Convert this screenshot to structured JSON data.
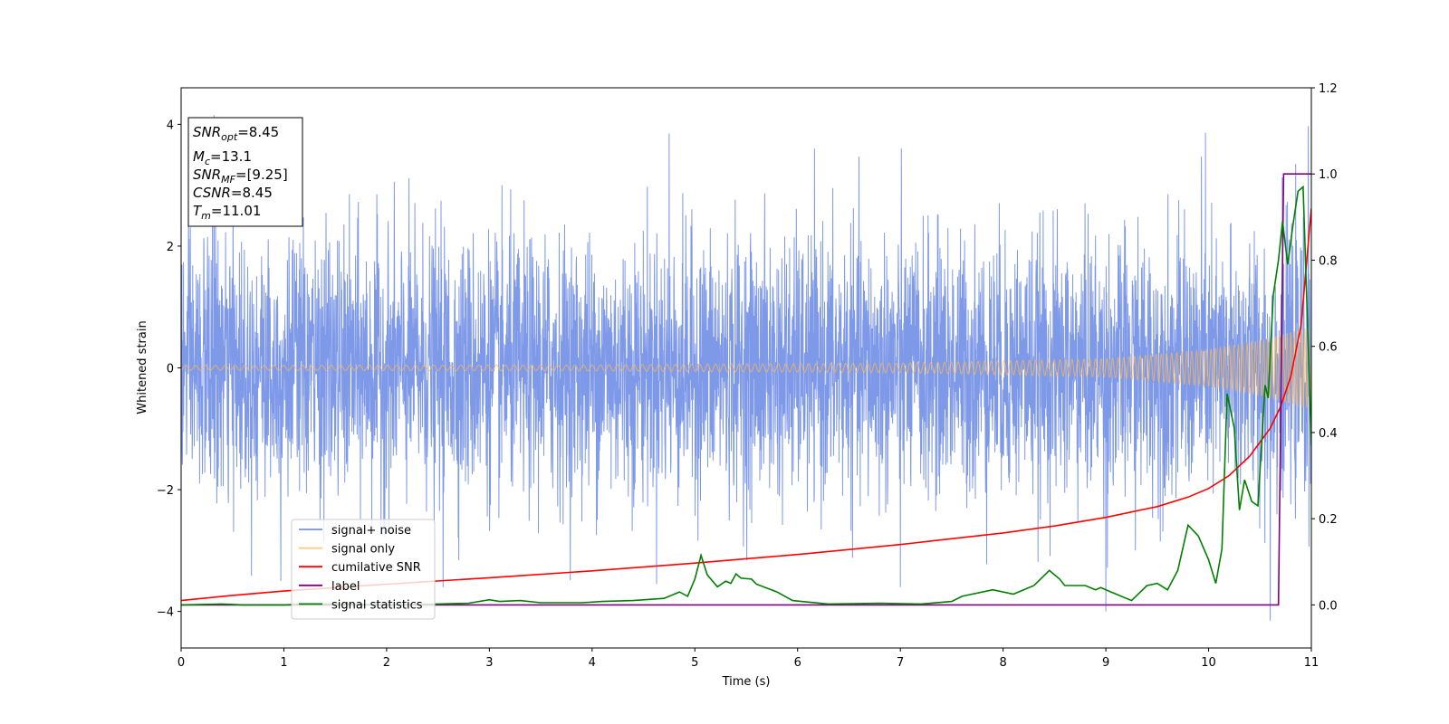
{
  "chart_data": {
    "type": "line",
    "xlabel": "Time (s)",
    "ylabel": "Whitened strain",
    "xlim": [
      0,
      11
    ],
    "ylim": [
      -4.6,
      4.6
    ],
    "y2lim": [
      -0.1,
      1.2
    ],
    "x_ticks": [
      "0",
      "1",
      "2",
      "3",
      "4",
      "5",
      "6",
      "7",
      "8",
      "9",
      "10",
      "11"
    ],
    "y_ticks": [
      "-4",
      "-2",
      "0",
      "2",
      "4"
    ],
    "y2_ticks": [
      "0.0",
      "0.2",
      "0.4",
      "0.6",
      "0.8",
      "1.0",
      "1.2"
    ],
    "legend_position": "lower-left",
    "info_box": {
      "snr_opt": {
        "sym": "SNR",
        "sub": "opt",
        "value": "=8.45"
      },
      "mc": {
        "sym": "M",
        "sub": "c",
        "value": "=13.1"
      },
      "snr_mf": {
        "sym": "SNR",
        "sub": "MF",
        "value": "=[9.25]"
      },
      "csnr": {
        "sym": "CSNR",
        "value": "=8.45"
      },
      "tm": {
        "sym": "T",
        "sub": "m",
        "value": "=11.01"
      }
    },
    "series": [
      {
        "name": "signal+ noise",
        "color": "#7893e8",
        "axis": "left",
        "description_kind": "noise_envelope",
        "t_start": 0,
        "t_end": 11,
        "sigma": 1.0,
        "peak_extremes": [
          {
            "x": 0.32,
            "y": 4.15
          },
          {
            "x": 4.75,
            "y": 3.85
          },
          {
            "x": 9.97,
            "y": 3.86
          },
          {
            "x": 10.97,
            "y": 3.97
          },
          {
            "x": 10.6,
            "y": -4.15
          },
          {
            "x": 9.0,
            "y": -4.0
          },
          {
            "x": 0.97,
            "y": -3.5
          },
          {
            "x": 2.55,
            "y": -3.6
          },
          {
            "x": 7.0,
            "y": -3.6
          }
        ]
      },
      {
        "name": "signal only",
        "color": "#ffb84d",
        "axis": "left",
        "description_kind": "chirp",
        "t_start": 0,
        "t_end": 11,
        "amplitude_points": [
          [
            0,
            0.04
          ],
          [
            4,
            0.05
          ],
          [
            7,
            0.08
          ],
          [
            9,
            0.15
          ],
          [
            10,
            0.3
          ],
          [
            10.5,
            0.45
          ],
          [
            11,
            0.68
          ]
        ]
      },
      {
        "name": "cumilative SNR",
        "color": "#ff0000",
        "axis": "right",
        "points": [
          [
            0,
            0.01
          ],
          [
            0.5,
            0.022
          ],
          [
            1,
            0.032
          ],
          [
            2,
            0.048
          ],
          [
            3,
            0.063
          ],
          [
            4,
            0.079
          ],
          [
            5,
            0.097
          ],
          [
            6,
            0.117
          ],
          [
            7,
            0.14
          ],
          [
            8,
            0.167
          ],
          [
            8.5,
            0.183
          ],
          [
            9,
            0.203
          ],
          [
            9.5,
            0.228
          ],
          [
            9.8,
            0.25
          ],
          [
            10,
            0.27
          ],
          [
            10.2,
            0.3
          ],
          [
            10.4,
            0.345
          ],
          [
            10.6,
            0.41
          ],
          [
            10.7,
            0.46
          ],
          [
            10.8,
            0.53
          ],
          [
            10.9,
            0.65
          ],
          [
            11,
            0.92
          ]
        ]
      },
      {
        "name": "label",
        "color": "#800080",
        "axis": "right",
        "points": [
          [
            0,
            0.0
          ],
          [
            10.68,
            0.0
          ],
          [
            10.73,
            1.0
          ],
          [
            11,
            1.0
          ]
        ]
      },
      {
        "name": "signal statistics",
        "color": "#008000",
        "axis": "right",
        "points": [
          [
            0,
            0.0
          ],
          [
            0.4,
            0.002
          ],
          [
            0.6,
            0.0
          ],
          [
            1.0,
            0.0
          ],
          [
            1.2,
            0.002
          ],
          [
            1.6,
            0.002
          ],
          [
            2.0,
            0.0
          ],
          [
            2.5,
            0.002
          ],
          [
            2.8,
            0.004
          ],
          [
            3.0,
            0.012
          ],
          [
            3.1,
            0.008
          ],
          [
            3.3,
            0.01
          ],
          [
            3.5,
            0.005
          ],
          [
            3.9,
            0.005
          ],
          [
            4.1,
            0.008
          ],
          [
            4.4,
            0.01
          ],
          [
            4.7,
            0.015
          ],
          [
            4.85,
            0.03
          ],
          [
            4.93,
            0.02
          ],
          [
            5.0,
            0.06
          ],
          [
            5.06,
            0.115
          ],
          [
            5.12,
            0.07
          ],
          [
            5.22,
            0.042
          ],
          [
            5.3,
            0.055
          ],
          [
            5.35,
            0.05
          ],
          [
            5.4,
            0.072
          ],
          [
            5.45,
            0.062
          ],
          [
            5.55,
            0.06
          ],
          [
            5.6,
            0.048
          ],
          [
            5.8,
            0.03
          ],
          [
            5.95,
            0.01
          ],
          [
            6.3,
            0.002
          ],
          [
            6.8,
            0.004
          ],
          [
            7.2,
            0.002
          ],
          [
            7.5,
            0.008
          ],
          [
            7.6,
            0.02
          ],
          [
            7.9,
            0.035
          ],
          [
            8.1,
            0.025
          ],
          [
            8.3,
            0.045
          ],
          [
            8.45,
            0.08
          ],
          [
            8.55,
            0.06
          ],
          [
            8.6,
            0.045
          ],
          [
            8.8,
            0.045
          ],
          [
            8.9,
            0.035
          ],
          [
            8.95,
            0.04
          ],
          [
            9.05,
            0.03
          ],
          [
            9.25,
            0.01
          ],
          [
            9.4,
            0.045
          ],
          [
            9.5,
            0.05
          ],
          [
            9.6,
            0.035
          ],
          [
            9.7,
            0.08
          ],
          [
            9.8,
            0.185
          ],
          [
            9.9,
            0.16
          ],
          [
            10.0,
            0.105
          ],
          [
            10.07,
            0.05
          ],
          [
            10.13,
            0.13
          ],
          [
            10.18,
            0.49
          ],
          [
            10.25,
            0.41
          ],
          [
            10.3,
            0.22
          ],
          [
            10.35,
            0.29
          ],
          [
            10.42,
            0.24
          ],
          [
            10.48,
            0.23
          ],
          [
            10.55,
            0.51
          ],
          [
            10.58,
            0.48
          ],
          [
            10.63,
            0.72
          ],
          [
            10.68,
            0.8
          ],
          [
            10.72,
            0.89
          ],
          [
            10.77,
            0.79
          ],
          [
            10.82,
            0.88
          ],
          [
            10.87,
            0.96
          ],
          [
            10.92,
            0.97
          ],
          [
            10.97,
            0.6
          ],
          [
            11.0,
            0.37
          ]
        ]
      }
    ]
  }
}
